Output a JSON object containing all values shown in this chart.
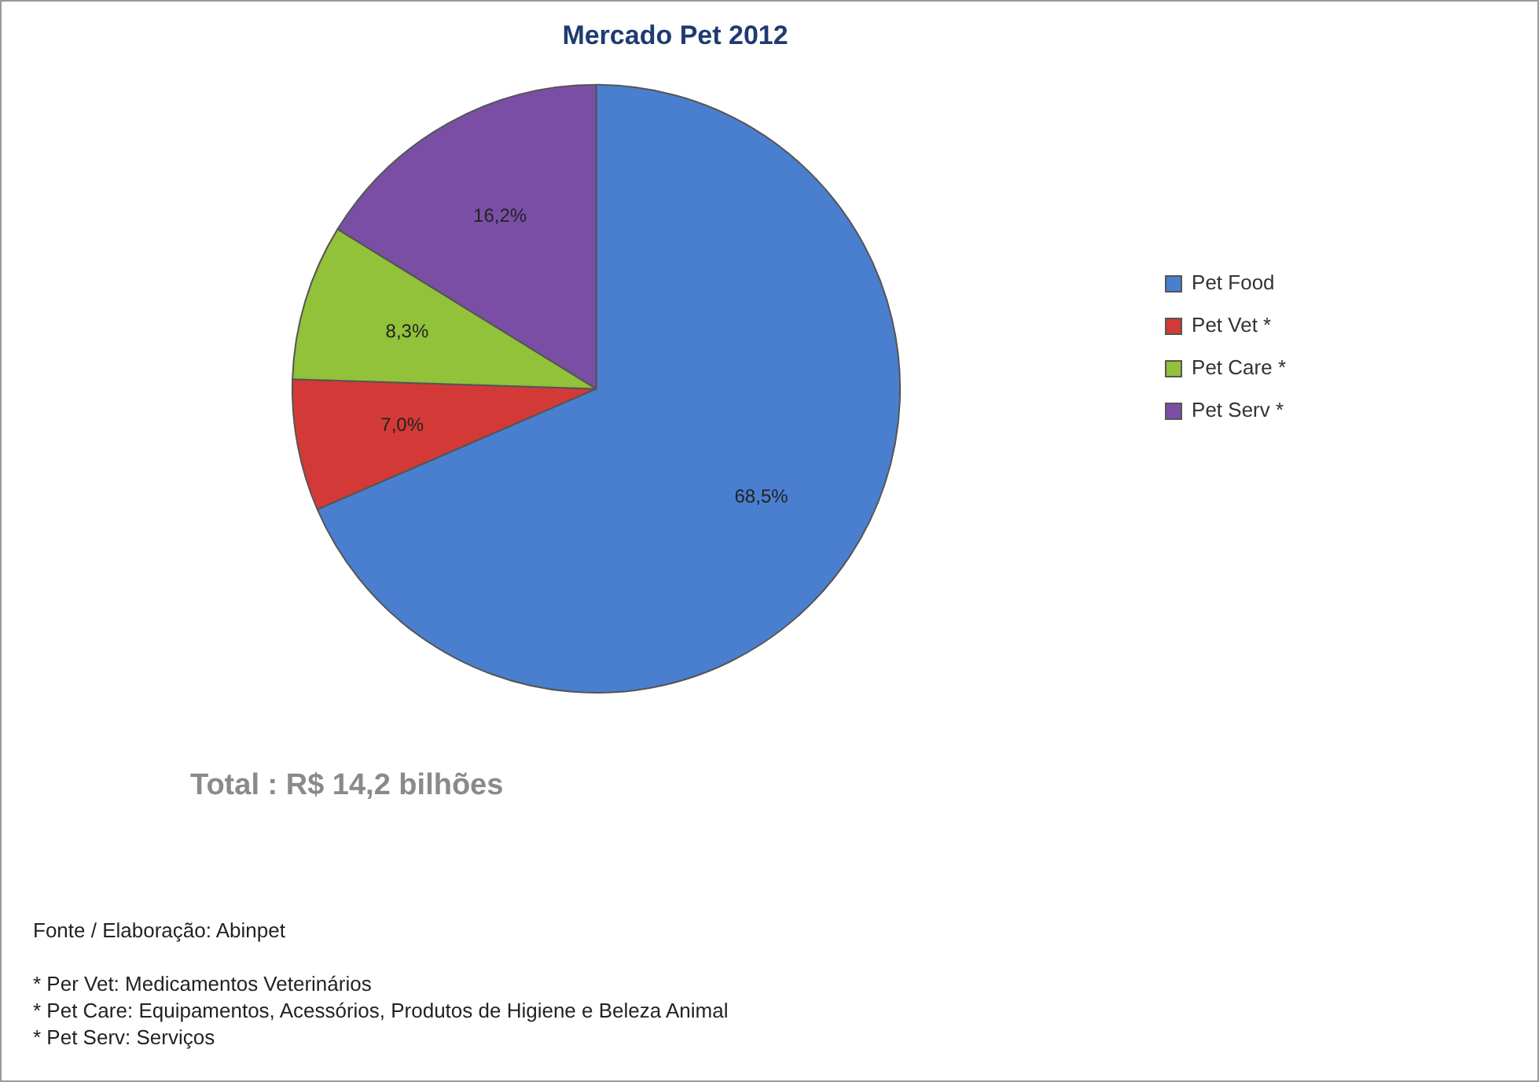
{
  "chart_data": {
    "type": "pie",
    "title": "Mercado Pet 2012",
    "categories": [
      "Pet Food",
      "Pet Vet *",
      "Pet Care *",
      "Pet Serv *"
    ],
    "values": [
      68.5,
      7.0,
      8.3,
      16.2
    ],
    "colors": [
      "#4a7fcf",
      "#d33a37",
      "#92c13a",
      "#7b4ea6"
    ],
    "value_labels": [
      "68,5%",
      "7,0%",
      "8,3%",
      "16,2%"
    ],
    "legend": "right",
    "annotations": [
      "Total : R$ 14,2 bilhões",
      "Fonte /  Elaboração: Abinpet",
      "* Per Vet: Medicamentos Veterinários",
      "* Pet Care: Equipamentos, Acessórios, Produtos de Higiene e Beleza Animal",
      "* Pet Serv: Serviços"
    ]
  }
}
